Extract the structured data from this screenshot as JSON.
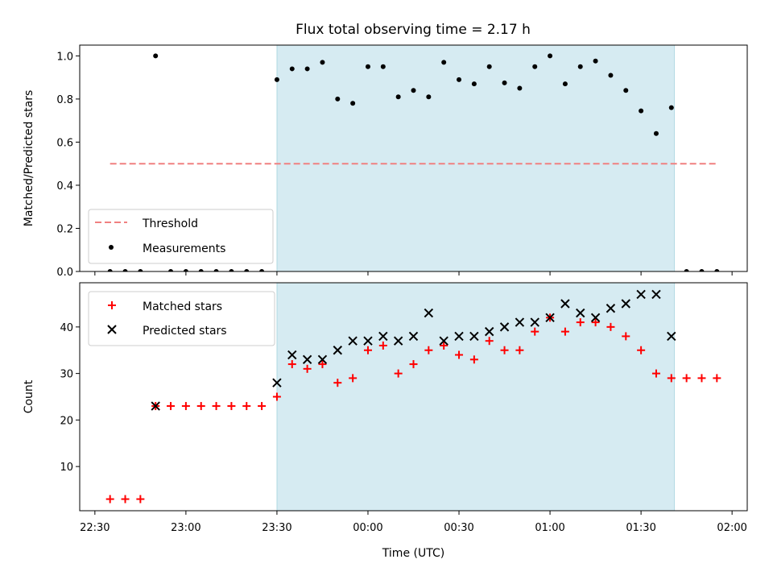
{
  "chart_data": [
    {
      "type": "scatter",
      "title": "Flux total observing time = 2.17 h",
      "xlabel": "",
      "ylabel": "Matched/Predicted stars",
      "xlim": [
        "22:25",
        "02:05"
      ],
      "ylim": [
        0,
        1.05
      ],
      "yticks": [
        "0.0",
        "0.2",
        "0.4",
        "0.6",
        "0.8",
        "1.0"
      ],
      "shaded_region": {
        "x": [
          "23:30",
          "01:41"
        ],
        "color": "#add8e6"
      },
      "threshold": {
        "name": "Threshold",
        "y": 0.5,
        "x": [
          "22:35",
          "01:55"
        ],
        "color": "#f08080"
      },
      "series": [
        {
          "name": "Measurements",
          "color": "#000000",
          "points": [
            [
              "22:35",
              0.0
            ],
            [
              "22:40",
              0.0
            ],
            [
              "22:45",
              0.0
            ],
            [
              "22:50",
              1.0
            ],
            [
              "22:55",
              0.0
            ],
            [
              "23:00",
              0.0
            ],
            [
              "23:05",
              0.0
            ],
            [
              "23:10",
              0.0
            ],
            [
              "23:15",
              0.0
            ],
            [
              "23:20",
              0.0
            ],
            [
              "23:25",
              0.0
            ],
            [
              "23:30",
              0.89
            ],
            [
              "23:35",
              0.94
            ],
            [
              "23:40",
              0.94
            ],
            [
              "23:45",
              0.97
            ],
            [
              "23:50",
              0.8
            ],
            [
              "23:55",
              0.78
            ],
            [
              "00:00",
              0.95
            ],
            [
              "00:05",
              0.95
            ],
            [
              "00:10",
              0.81
            ],
            [
              "00:15",
              0.84
            ],
            [
              "00:20",
              0.81
            ],
            [
              "00:25",
              0.97
            ],
            [
              "00:30",
              0.89
            ],
            [
              "00:35",
              0.87
            ],
            [
              "00:40",
              0.95
            ],
            [
              "00:45",
              0.875
            ],
            [
              "00:50",
              0.85
            ],
            [
              "00:55",
              0.95
            ],
            [
              "01:00",
              1.0
            ],
            [
              "01:05",
              0.87
            ],
            [
              "01:10",
              0.95
            ],
            [
              "01:15",
              0.976
            ],
            [
              "01:20",
              0.91
            ],
            [
              "01:25",
              0.84
            ],
            [
              "01:30",
              0.745
            ],
            [
              "01:35",
              0.64
            ],
            [
              "01:40",
              0.76
            ],
            [
              "01:45",
              0.0
            ],
            [
              "01:50",
              0.0
            ],
            [
              "01:55",
              0.0
            ]
          ]
        }
      ],
      "legend": "lower-left",
      "grid": false
    },
    {
      "type": "scatter",
      "xlabel": "Time (UTC)",
      "ylabel": "Count",
      "xlim": [
        "22:25",
        "02:05"
      ],
      "ylim": [
        0.5,
        49.5
      ],
      "yticks": [
        "10",
        "20",
        "30",
        "40"
      ],
      "xticks": [
        "22:30",
        "23:00",
        "23:30",
        "00:00",
        "00:30",
        "01:00",
        "01:30",
        "02:00"
      ],
      "shaded_region": {
        "x": [
          "23:30",
          "01:41"
        ],
        "color": "#add8e6"
      },
      "series": [
        {
          "name": "Matched stars",
          "marker": "plus",
          "color": "#ff0000",
          "points": [
            [
              "22:35",
              3
            ],
            [
              "22:40",
              3
            ],
            [
              "22:45",
              3
            ],
            [
              "22:50",
              23
            ],
            [
              "22:55",
              23
            ],
            [
              "23:00",
              23
            ],
            [
              "23:05",
              23
            ],
            [
              "23:10",
              23
            ],
            [
              "23:15",
              23
            ],
            [
              "23:20",
              23
            ],
            [
              "23:25",
              23
            ],
            [
              "23:30",
              25
            ],
            [
              "23:35",
              32
            ],
            [
              "23:40",
              31
            ],
            [
              "23:45",
              32
            ],
            [
              "23:50",
              28
            ],
            [
              "23:55",
              29
            ],
            [
              "00:00",
              35
            ],
            [
              "00:05",
              36
            ],
            [
              "00:10",
              30
            ],
            [
              "00:15",
              32
            ],
            [
              "00:20",
              35
            ],
            [
              "00:25",
              36
            ],
            [
              "00:30",
              34
            ],
            [
              "00:35",
              33
            ],
            [
              "00:40",
              37
            ],
            [
              "00:45",
              35
            ],
            [
              "00:50",
              35
            ],
            [
              "00:55",
              39
            ],
            [
              "01:00",
              42
            ],
            [
              "01:05",
              39
            ],
            [
              "01:10",
              41
            ],
            [
              "01:15",
              41
            ],
            [
              "01:20",
              40
            ],
            [
              "01:25",
              38
            ],
            [
              "01:30",
              35
            ],
            [
              "01:35",
              30
            ],
            [
              "01:40",
              29
            ],
            [
              "01:45",
              29
            ],
            [
              "01:50",
              29
            ],
            [
              "01:55",
              29
            ]
          ]
        },
        {
          "name": "Predicted stars",
          "marker": "x",
          "color": "#000000",
          "points": [
            [
              "22:50",
              23
            ],
            [
              "23:30",
              28
            ],
            [
              "23:35",
              34
            ],
            [
              "23:40",
              33
            ],
            [
              "23:45",
              33
            ],
            [
              "23:50",
              35
            ],
            [
              "23:55",
              37
            ],
            [
              "00:00",
              37
            ],
            [
              "00:05",
              38
            ],
            [
              "00:10",
              37
            ],
            [
              "00:15",
              38
            ],
            [
              "00:20",
              43
            ],
            [
              "00:25",
              37
            ],
            [
              "00:30",
              38
            ],
            [
              "00:35",
              38
            ],
            [
              "00:40",
              39
            ],
            [
              "00:45",
              40
            ],
            [
              "00:50",
              41
            ],
            [
              "00:55",
              41
            ],
            [
              "01:00",
              42
            ],
            [
              "01:05",
              45
            ],
            [
              "01:10",
              43
            ],
            [
              "01:15",
              42
            ],
            [
              "01:20",
              44
            ],
            [
              "01:25",
              45
            ],
            [
              "01:30",
              47
            ],
            [
              "01:35",
              47
            ],
            [
              "01:40",
              38
            ]
          ]
        }
      ],
      "legend": "upper-left",
      "grid": false
    }
  ]
}
